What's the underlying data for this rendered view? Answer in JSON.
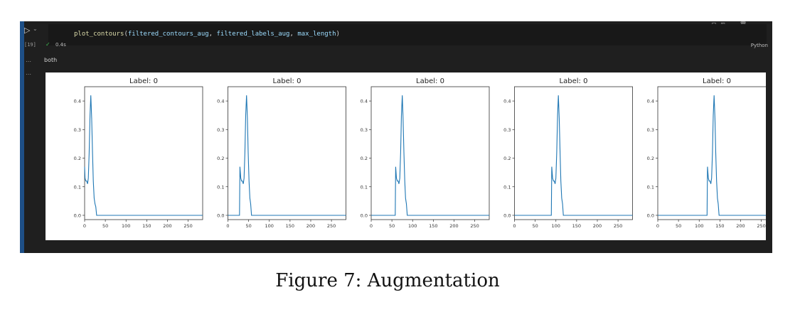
{
  "notebook": {
    "code": {
      "fn": "plot_contours",
      "args": [
        "filtered_contours_aug",
        "filtered_labels_aug",
        "max_length"
      ],
      "exec_count": "[19]",
      "exec_time": "0.4s",
      "language": "Python"
    },
    "output_text": "both"
  },
  "caption": "Figure 7:  Augmentation",
  "chart_data": [
    {
      "type": "line",
      "title": "Label: 0",
      "xlim": [
        0,
        285
      ],
      "ylim": [
        -0.015,
        0.45
      ],
      "xticks": [
        0,
        50,
        100,
        150,
        200,
        250
      ],
      "yticks": [
        0.0,
        0.1,
        0.2,
        0.3,
        0.4
      ],
      "series": [
        {
          "x": [
            0,
            1,
            3,
            5,
            7,
            9,
            11,
            13,
            15,
            17,
            19,
            21,
            23,
            25,
            27,
            29,
            285
          ],
          "y": [
            0.17,
            0.13,
            0.12,
            0.12,
            0.11,
            0.13,
            0.22,
            0.35,
            0.42,
            0.34,
            0.22,
            0.12,
            0.06,
            0.04,
            0.03,
            0.0,
            0.0
          ]
        }
      ]
    },
    {
      "type": "line",
      "title": "Label: 0",
      "xlim": [
        0,
        285
      ],
      "ylim": [
        -0.015,
        0.45
      ],
      "xticks": [
        0,
        50,
        100,
        150,
        200,
        250
      ],
      "yticks": [
        0.0,
        0.1,
        0.2,
        0.3,
        0.4
      ],
      "series": [
        {
          "x": [
            0,
            28,
            29,
            31,
            33,
            35,
            37,
            39,
            41,
            43,
            45,
            47,
            49,
            51,
            53,
            55,
            57,
            285
          ],
          "y": [
            0.0,
            0.0,
            0.17,
            0.13,
            0.12,
            0.12,
            0.11,
            0.13,
            0.22,
            0.35,
            0.42,
            0.34,
            0.22,
            0.12,
            0.06,
            0.04,
            0.0,
            0.0
          ]
        }
      ]
    },
    {
      "type": "line",
      "title": "Label: 0",
      "xlim": [
        0,
        285
      ],
      "ylim": [
        -0.015,
        0.45
      ],
      "xticks": [
        0,
        50,
        100,
        150,
        200,
        250
      ],
      "yticks": [
        0.0,
        0.1,
        0.2,
        0.3,
        0.4
      ],
      "series": [
        {
          "x": [
            0,
            58,
            59,
            61,
            63,
            65,
            67,
            69,
            71,
            73,
            75,
            77,
            79,
            81,
            83,
            85,
            87,
            285
          ],
          "y": [
            0.0,
            0.0,
            0.17,
            0.13,
            0.12,
            0.12,
            0.11,
            0.13,
            0.22,
            0.35,
            0.42,
            0.34,
            0.22,
            0.12,
            0.06,
            0.04,
            0.0,
            0.0
          ]
        }
      ]
    },
    {
      "type": "line",
      "title": "Label: 0",
      "xlim": [
        0,
        285
      ],
      "ylim": [
        -0.015,
        0.45
      ],
      "xticks": [
        0,
        50,
        100,
        150,
        200,
        250
      ],
      "yticks": [
        0.0,
        0.1,
        0.2,
        0.3,
        0.4
      ],
      "series": [
        {
          "x": [
            0,
            89,
            90,
            92,
            94,
            96,
            98,
            100,
            102,
            104,
            106,
            108,
            110,
            112,
            114,
            116,
            118,
            285
          ],
          "y": [
            0.0,
            0.0,
            0.17,
            0.13,
            0.12,
            0.12,
            0.11,
            0.13,
            0.22,
            0.35,
            0.42,
            0.34,
            0.22,
            0.12,
            0.06,
            0.04,
            0.0,
            0.0
          ]
        }
      ]
    },
    {
      "type": "line",
      "title": "Label: 0",
      "xlim": [
        0,
        285
      ],
      "ylim": [
        -0.015,
        0.45
      ],
      "xticks": [
        0,
        50,
        100,
        150,
        200,
        250
      ],
      "yticks": [
        0.0,
        0.1,
        0.2,
        0.3,
        0.4
      ],
      "series": [
        {
          "x": [
            0,
            119,
            120,
            122,
            124,
            126,
            128,
            130,
            132,
            134,
            136,
            138,
            140,
            142,
            144,
            146,
            148,
            285
          ],
          "y": [
            0.0,
            0.0,
            0.17,
            0.13,
            0.12,
            0.12,
            0.11,
            0.13,
            0.22,
            0.35,
            0.42,
            0.34,
            0.22,
            0.12,
            0.06,
            0.04,
            0.0,
            0.0
          ]
        }
      ]
    }
  ]
}
